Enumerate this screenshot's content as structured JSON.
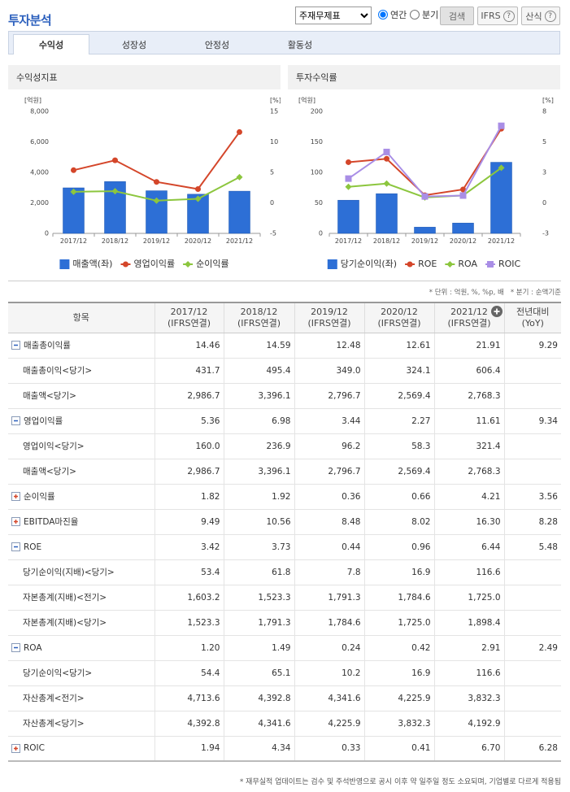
{
  "header": {
    "title": "투자분석",
    "report_select": "주재무제표",
    "period_options": [
      "연간",
      "분기"
    ],
    "period_selected": 0,
    "search_button": "검색",
    "ifrs_button": "IFRS",
    "formula_button": "산식",
    "help_icon": "?"
  },
  "tabs": {
    "items": [
      "수익성",
      "성장성",
      "안정성",
      "활동성"
    ],
    "active": 0
  },
  "chart_data": [
    {
      "type": "bar",
      "title": "수익성지표",
      "y_label": "[억원]",
      "y2_label": "[%]",
      "categories": [
        "2017/12",
        "2018/12",
        "2019/12",
        "2020/12",
        "2021/12"
      ],
      "series": [
        {
          "name": "매출액(좌)",
          "type": "bar",
          "color": "#2d6fd6",
          "values": [
            2986.7,
            3396.1,
            2796.7,
            2569.4,
            2768.3
          ]
        },
        {
          "name": "영업이익률",
          "type": "line",
          "axis": "y2",
          "marker": "circle",
          "color": "#d4462a",
          "values": [
            5.36,
            6.98,
            3.44,
            2.27,
            11.61
          ]
        },
        {
          "name": "순이익률",
          "type": "line",
          "axis": "y2",
          "marker": "diamond",
          "color": "#8cc63e",
          "values": [
            1.82,
            1.92,
            0.36,
            0.66,
            4.21
          ]
        }
      ],
      "ylim": [
        0,
        8000
      ],
      "yticks": [
        0,
        {
          "value": 2000,
          "label": "2,000"
        },
        {
          "value": 4000,
          "label": "4,000"
        },
        {
          "value": 6000,
          "label": "6,000"
        },
        {
          "value": 8000,
          "label": "8,000"
        }
      ],
      "y2lim": [
        -5,
        15
      ],
      "y2ticks": [
        -5,
        0,
        5,
        10,
        15
      ],
      "grid": false,
      "legend": "bottom"
    },
    {
      "type": "bar",
      "title": "투자수익률",
      "y_label": "[억원]",
      "y2_label": "[%]",
      "categories": [
        "2017/12",
        "2018/12",
        "2019/12",
        "2020/12",
        "2021/12"
      ],
      "series": [
        {
          "name": "당기순이익(좌)",
          "type": "bar",
          "color": "#2d6fd6",
          "values": [
            54.4,
            65.1,
            10.2,
            16.9,
            116.6
          ]
        },
        {
          "name": "ROE",
          "type": "line",
          "axis": "y2",
          "marker": "circle",
          "color": "#d4462a",
          "values": [
            3.42,
            3.73,
            0.44,
            0.96,
            6.44
          ]
        },
        {
          "name": "ROA",
          "type": "line",
          "axis": "y2",
          "marker": "diamond",
          "color": "#8cc63e",
          "values": [
            1.2,
            1.49,
            0.24,
            0.42,
            2.91
          ]
        },
        {
          "name": "ROIC",
          "type": "line",
          "axis": "y2",
          "marker": "square",
          "color": "#a98ee6",
          "values": [
            1.94,
            4.34,
            0.33,
            0.41,
            6.7
          ]
        }
      ],
      "ylim": [
        0,
        200
      ],
      "yticks": [
        0,
        50,
        100,
        150,
        200
      ],
      "y2lim": [
        -3,
        8
      ],
      "y2ticks": [
        -3,
        {
          "value": -0.25,
          "label": "0"
        },
        {
          "value": 2.5,
          "label": "3"
        },
        {
          "value": 5.25,
          "label": "5"
        },
        8
      ],
      "grid": false,
      "legend": "bottom"
    }
  ],
  "unit_note": "* 단위 : 억원, %, %p, 배",
  "period_note": "* 분기 : 순액기준",
  "table": {
    "header": {
      "item": "항목",
      "periods": [
        [
          "2017/12",
          "(IFRS연결)"
        ],
        [
          "2018/12",
          "(IFRS연결)"
        ],
        [
          "2019/12",
          "(IFRS연결)"
        ],
        [
          "2020/12",
          "(IFRS연결)"
        ],
        [
          "2021/12",
          "(IFRS연결)"
        ]
      ],
      "yoy": [
        "전년대비",
        "(YoY)"
      ]
    },
    "rows": [
      {
        "label": "매출총이익률",
        "expanded": true,
        "values": [
          "14.46",
          "14.59",
          "12.48",
          "12.61",
          "21.91"
        ],
        "yoy": "9.29"
      },
      {
        "label": "매출총이익<당기>",
        "values": [
          "431.7",
          "495.4",
          "349.0",
          "324.1",
          "606.4"
        ]
      },
      {
        "label": "매출액<당기>",
        "values": [
          "2,986.7",
          "3,396.1",
          "2,796.7",
          "2,569.4",
          "2,768.3"
        ]
      },
      {
        "label": "영업이익률",
        "expanded": true,
        "values": [
          "5.36",
          "6.98",
          "3.44",
          "2.27",
          "11.61"
        ],
        "yoy": "9.34"
      },
      {
        "label": "영업이익<당기>",
        "values": [
          "160.0",
          "236.9",
          "96.2",
          "58.3",
          "321.4"
        ]
      },
      {
        "label": "매출액<당기>",
        "values": [
          "2,986.7",
          "3,396.1",
          "2,796.7",
          "2,569.4",
          "2,768.3"
        ]
      },
      {
        "label": "순이익률",
        "expanded": false,
        "values": [
          "1.82",
          "1.92",
          "0.36",
          "0.66",
          "4.21"
        ],
        "yoy": "3.56"
      },
      {
        "label": "EBITDA마진율",
        "expanded": false,
        "values": [
          "9.49",
          "10.56",
          "8.48",
          "8.02",
          "16.30"
        ],
        "yoy": "8.28"
      },
      {
        "label": "ROE",
        "expanded": true,
        "values": [
          "3.42",
          "3.73",
          "0.44",
          "0.96",
          "6.44"
        ],
        "yoy": "5.48"
      },
      {
        "label": "당기순이익(지배)<당기>",
        "values": [
          "53.4",
          "61.8",
          "7.8",
          "16.9",
          "116.6"
        ]
      },
      {
        "label": "자본총계(지배)<전기>",
        "values": [
          "1,603.2",
          "1,523.3",
          "1,791.3",
          "1,784.6",
          "1,725.0"
        ]
      },
      {
        "label": "자본총계(지배)<당기>",
        "values": [
          "1,523.3",
          "1,791.3",
          "1,784.6",
          "1,725.0",
          "1,898.4"
        ]
      },
      {
        "label": "ROA",
        "expanded": true,
        "values": [
          "1.20",
          "1.49",
          "0.24",
          "0.42",
          "2.91"
        ],
        "yoy": "2.49"
      },
      {
        "label": "당기순이익<당기>",
        "values": [
          "54.4",
          "65.1",
          "10.2",
          "16.9",
          "116.6"
        ]
      },
      {
        "label": "자산총계<전기>",
        "values": [
          "4,713.6",
          "4,392.8",
          "4,341.6",
          "4,225.9",
          "3,832.3"
        ]
      },
      {
        "label": "자산총계<당기>",
        "values": [
          "4,392.8",
          "4,341.6",
          "4,225.9",
          "3,832.3",
          "4,192.9"
        ]
      },
      {
        "label": "ROIC",
        "expanded": false,
        "values": [
          "1.94",
          "4.34",
          "0.33",
          "0.41",
          "6.70"
        ],
        "yoy": "6.28"
      }
    ]
  },
  "footnote": "* 재무실적 업데이트는 검수 및 주석반영으로 공시 이후 약 일주일 정도 소요되며, 기업별로 다르게 적용됨"
}
